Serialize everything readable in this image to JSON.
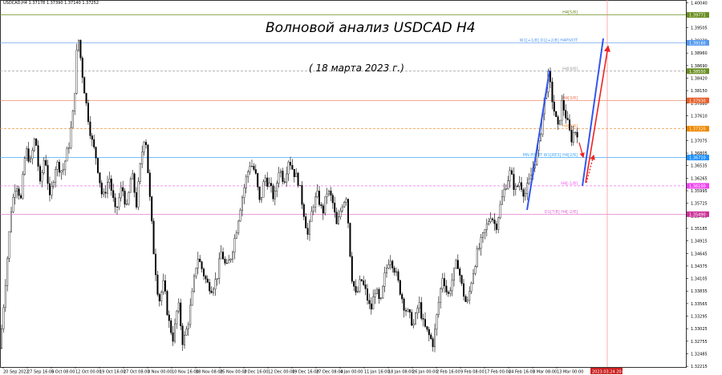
{
  "header": {
    "symbol_line": "USDCAD,H4  1.37178 1.37390 1.37140 1.37252"
  },
  "annotation": {
    "title": "Волновой анализ USDCAD H4",
    "subtitle": "( 18 марта 2023 г.)"
  },
  "chart_data": {
    "type": "candlestick",
    "symbol": "USDCAD",
    "timeframe": "H4",
    "ohlc_last": {
      "open": 1.37178,
      "high": 1.3739,
      "low": 1.3714,
      "close": 1.37252
    },
    "ylim": [
      1.322,
      1.4005
    ],
    "y_ticks": [
      "1.40040",
      "1.39505",
      "1.39230",
      "1.38960",
      "1.38690",
      "1.38420",
      "1.38150",
      "1.37880",
      "1.37610",
      "1.37345",
      "1.37075",
      "1.36805",
      "1.36535",
      "1.36265",
      "1.35995",
      "1.35725",
      "1.35455",
      "1.35185",
      "1.34915",
      "1.34645",
      "1.34375",
      "1.34105",
      "1.33835",
      "1.33565",
      "1.33295",
      "1.33025",
      "1.32755",
      "1.32485",
      "1.32215"
    ],
    "x_labels": [
      "20 Sep 2022",
      "27 Sep 16:00",
      "5 Oct 08:00",
      "12 Oct 00:00",
      "19 Oct 16:00",
      "27 Oct 08:00",
      "3 Nov 00:00",
      "10 Nov 16:00",
      "18 Nov 08:00",
      "25 Nov 00:00",
      "2 Dec 16:00",
      "12 Dec 00:00",
      "19 Dec 16:00",
      "27 Dec 08:00",
      "4 Jan 00:00",
      "11 Jan 16:00",
      "18 Jan 08:00",
      "26 Jan 00:00",
      "2 Feb 16:00",
      "9 Feb 08:00",
      "17 Feb 00:00",
      "24 Feb 16:00",
      "3 Mar 08:00",
      "13 Mar 00:00",
      "2023.03.24 20:00"
    ],
    "price_path": [
      [
        0,
        1.326
      ],
      [
        8,
        1.343
      ],
      [
        14,
        1.356
      ],
      [
        20,
        1.362
      ],
      [
        26,
        1.358
      ],
      [
        32,
        1.369
      ],
      [
        38,
        1.366
      ],
      [
        44,
        1.372
      ],
      [
        50,
        1.361
      ],
      [
        56,
        1.368
      ],
      [
        62,
        1.358
      ],
      [
        70,
        1.366
      ],
      [
        78,
        1.364
      ],
      [
        86,
        1.37
      ],
      [
        92,
        1.378
      ],
      [
        97,
        1.394
      ],
      [
        102,
        1.386
      ],
      [
        108,
        1.378
      ],
      [
        114,
        1.371
      ],
      [
        120,
        1.367
      ],
      [
        128,
        1.358
      ],
      [
        136,
        1.363
      ],
      [
        144,
        1.355
      ],
      [
        152,
        1.361
      ],
      [
        158,
        1.356
      ],
      [
        164,
        1.364
      ],
      [
        170,
        1.357
      ],
      [
        176,
        1.367
      ],
      [
        181,
        1.373
      ],
      [
        186,
        1.36
      ],
      [
        192,
        1.346
      ],
      [
        198,
        1.336
      ],
      [
        204,
        1.34
      ],
      [
        210,
        1.332
      ],
      [
        216,
        1.328
      ],
      [
        222,
        1.336
      ],
      [
        228,
        1.327
      ],
      [
        234,
        1.331
      ],
      [
        240,
        1.338
      ],
      [
        246,
        1.346
      ],
      [
        252,
        1.343
      ],
      [
        258,
        1.34
      ],
      [
        264,
        1.339
      ],
      [
        270,
        1.341
      ],
      [
        276,
        1.347
      ],
      [
        282,
        1.343
      ],
      [
        288,
        1.346
      ],
      [
        294,
        1.351
      ],
      [
        300,
        1.357
      ],
      [
        306,
        1.362
      ],
      [
        312,
        1.366
      ],
      [
        318,
        1.364
      ],
      [
        324,
        1.357
      ],
      [
        330,
        1.363
      ],
      [
        336,
        1.361
      ],
      [
        342,
        1.358
      ],
      [
        348,
        1.365
      ],
      [
        354,
        1.362
      ],
      [
        360,
        1.367
      ],
      [
        366,
        1.364
      ],
      [
        372,
        1.362
      ],
      [
        378,
        1.356
      ],
      [
        384,
        1.35
      ],
      [
        390,
        1.357
      ],
      [
        396,
        1.359
      ],
      [
        402,
        1.355
      ],
      [
        408,
        1.36
      ],
      [
        414,
        1.358
      ],
      [
        420,
        1.352
      ],
      [
        426,
        1.357
      ],
      [
        432,
        1.359
      ],
      [
        438,
        1.342
      ],
      [
        444,
        1.337
      ],
      [
        450,
        1.341
      ],
      [
        456,
        1.338
      ],
      [
        462,
        1.334
      ],
      [
        468,
        1.339
      ],
      [
        474,
        1.335
      ],
      [
        480,
        1.342
      ],
      [
        486,
        1.346
      ],
      [
        492,
        1.343
      ],
      [
        498,
        1.339
      ],
      [
        504,
        1.335
      ],
      [
        510,
        1.333
      ],
      [
        516,
        1.331
      ],
      [
        522,
        1.336
      ],
      [
        528,
        1.331
      ],
      [
        534,
        1.329
      ],
      [
        540,
        1.327
      ],
      [
        546,
        1.335
      ],
      [
        552,
        1.342
      ],
      [
        558,
        1.337
      ],
      [
        564,
        1.341
      ],
      [
        570,
        1.345
      ],
      [
        576,
        1.339
      ],
      [
        582,
        1.335
      ],
      [
        588,
        1.341
      ],
      [
        594,
        1.346
      ],
      [
        600,
        1.349
      ],
      [
        606,
        1.352
      ],
      [
        612,
        1.355
      ],
      [
        618,
        1.352
      ],
      [
        624,
        1.357
      ],
      [
        630,
        1.361
      ],
      [
        636,
        1.364
      ],
      [
        642,
        1.36
      ],
      [
        648,
        1.362
      ],
      [
        654,
        1.359
      ],
      [
        660,
        1.362
      ],
      [
        666,
        1.366
      ],
      [
        672,
        1.37
      ],
      [
        676,
        1.376
      ],
      [
        680,
        1.381
      ],
      [
        684,
        1.385
      ],
      [
        688,
        1.38
      ],
      [
        692,
        1.376
      ],
      [
        696,
        1.373
      ],
      [
        700,
        1.379
      ],
      [
        704,
        1.377
      ],
      [
        708,
        1.374
      ],
      [
        712,
        1.371
      ],
      [
        716,
        1.373
      ],
      [
        720,
        1.3725
      ]
    ],
    "levels": [
      {
        "label": "H4[5/8]",
        "price": 1.3978,
        "color": "#6b8e23",
        "style": "solid",
        "tag": "1.39771",
        "tag_color": "#6b8e23"
      },
      {
        "label": "W1[+1/8] D1[+2/8] H4PIVOT",
        "price": 1.3918,
        "color": "#5599ee",
        "style": "solid",
        "tag": "1.39160",
        "tag_color": "#5599ee"
      },
      {
        "label": "H4[4/8]",
        "price": 1.3857,
        "color": "#999999",
        "style": "dash",
        "tag": "1.38550",
        "tag_color": "#6b8e23"
      },
      {
        "label": "H4[3/8]",
        "price": 1.3794,
        "color": "#ee7755",
        "style": "solid",
        "tag": "1.37930",
        "tag_color": "#e8602c"
      },
      {
        "label": "H4[3/8]",
        "price": 1.3733,
        "color": "#ee9944",
        "style": "dash",
        "tag": "1.37320",
        "tag_color": "#ee8800"
      },
      {
        "label": "MN PIVOT W1[RE3] H4[2/8]",
        "price": 1.3671,
        "color": "#44aaff",
        "style": "solid",
        "tag": "1.36710",
        "tag_color": "#1e90ff"
      },
      {
        "label": "H4[-1/8]",
        "price": 1.361,
        "color": "#ee55ee",
        "style": "dash",
        "tag": "1.36100",
        "tag_color": "#ee44ee"
      },
      {
        "label": "D1[7/8] H4[-2/8]",
        "price": 1.3549,
        "color": "#dd66cc",
        "style": "solid",
        "tag": "1.35490",
        "tag_color": "#cc3399"
      }
    ],
    "future_time_label": "2023.03.24 20:00"
  },
  "colors": {
    "candle": "#000000",
    "blue_channel": "#3355ee",
    "red_arrow": "#ee2222",
    "vline": "#ff8888",
    "axis": "#000000"
  }
}
